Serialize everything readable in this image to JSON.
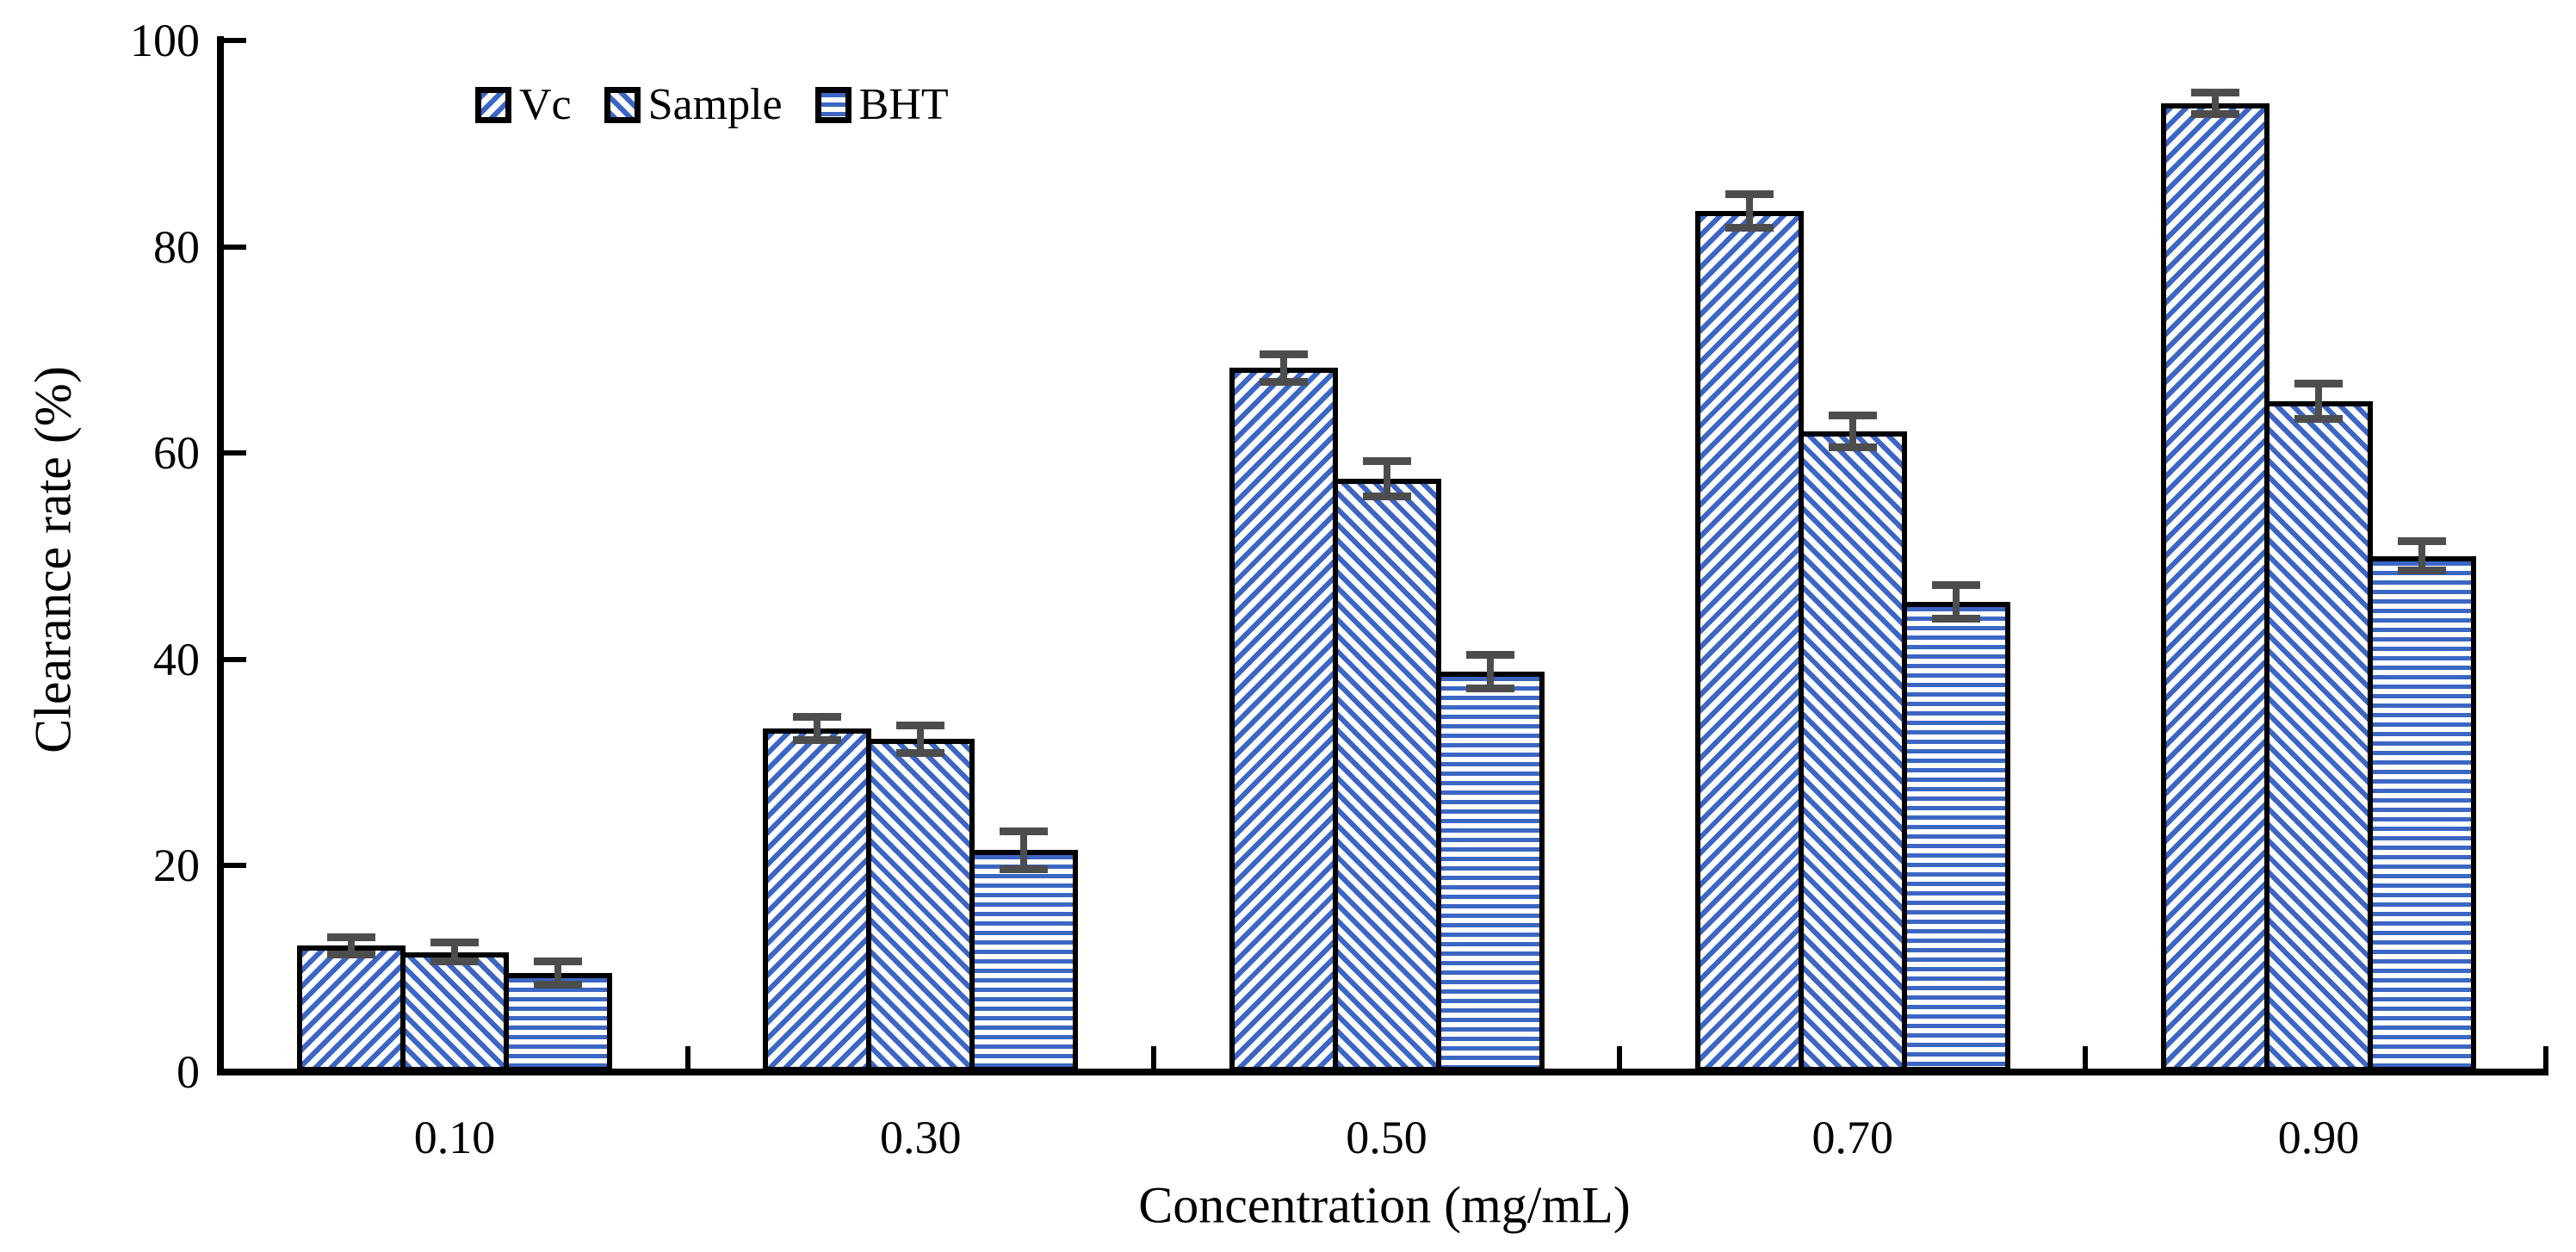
{
  "chart_data": {
    "type": "bar",
    "title": "",
    "xlabel": "Concentration (mg/mL)",
    "ylabel": "Clearance rate (%)",
    "categories": [
      "0.10",
      "0.30",
      "0.50",
      "0.70",
      "0.90"
    ],
    "series": [
      {
        "name": "Vc",
        "pattern": "diagonal-forward",
        "values": [
          12.3,
          33.3,
          68.3,
          83.5,
          93.9
        ],
        "errors": [
          1.2,
          1.5,
          1.7,
          2.0,
          1.4
        ]
      },
      {
        "name": "Sample",
        "pattern": "diagonal-backward",
        "values": [
          11.6,
          32.3,
          57.5,
          62.1,
          65.0
        ],
        "errors": [
          1.3,
          1.7,
          2.1,
          1.9,
          2.1
        ]
      },
      {
        "name": "BHT",
        "pattern": "horizontal-lines",
        "values": [
          9.6,
          21.5,
          38.8,
          45.6,
          50.0
        ],
        "errors": [
          1.5,
          2.2,
          2.0,
          2.0,
          1.8
        ]
      }
    ],
    "ylim": [
      0,
      100
    ],
    "yticks": [
      0,
      20,
      40,
      60,
      80,
      100
    ],
    "grid": false,
    "legend_position": "top-left-of-plot",
    "error_bars": true,
    "colors": {
      "bar_fill": "#3B66C4",
      "bar_background": "#FFFFFF",
      "bar_border": "#000000",
      "error_bar": "#4D4D4D",
      "axis": "#000000",
      "text": "#000000"
    }
  }
}
